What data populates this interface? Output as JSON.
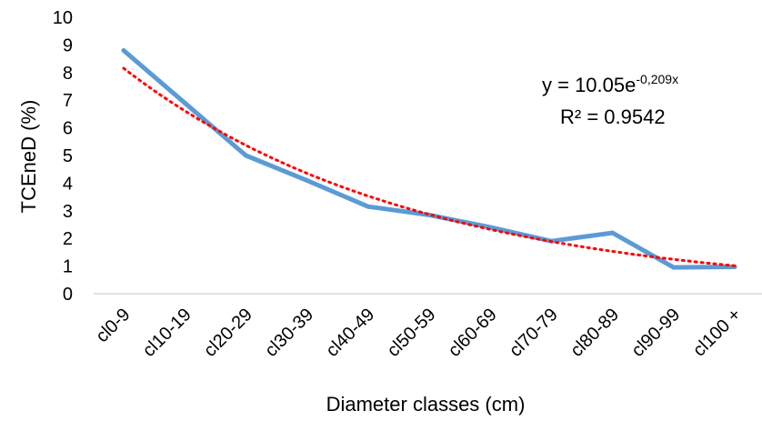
{
  "chart_data": {
    "type": "line",
    "xlabel": "Diameter classes (cm)",
    "ylabel": "TCEneD (%)",
    "ylim": [
      0,
      10
    ],
    "yticks": [
      0,
      1,
      2,
      3,
      4,
      5,
      6,
      7,
      8,
      9,
      10
    ],
    "categories": [
      "cl0-9",
      "cl10-19",
      "cl20-29",
      "cl30-39",
      "cl40-49",
      "cl50-59",
      "cl60-69",
      "cl70-79",
      "cl80-89",
      "cl90-99",
      "cl100 +"
    ],
    "grid": false,
    "legend": "none",
    "series": [
      {
        "values": [
          8.8,
          6.9,
          5.0,
          4.1,
          3.15,
          2.85,
          2.4,
          1.9,
          2.2,
          0.95,
          0.97
        ],
        "color": "#5b9bd5",
        "style": "solid"
      }
    ],
    "trendline": {
      "kind": "exponential",
      "a": 10.05,
      "b": -0.209,
      "color": "#ff0000",
      "style": "dotted"
    },
    "annotations": {
      "equation_prefix": "y = 10.05e",
      "equation_exponent": "-0,209x",
      "r_squared": "R² = 0.9542"
    }
  }
}
